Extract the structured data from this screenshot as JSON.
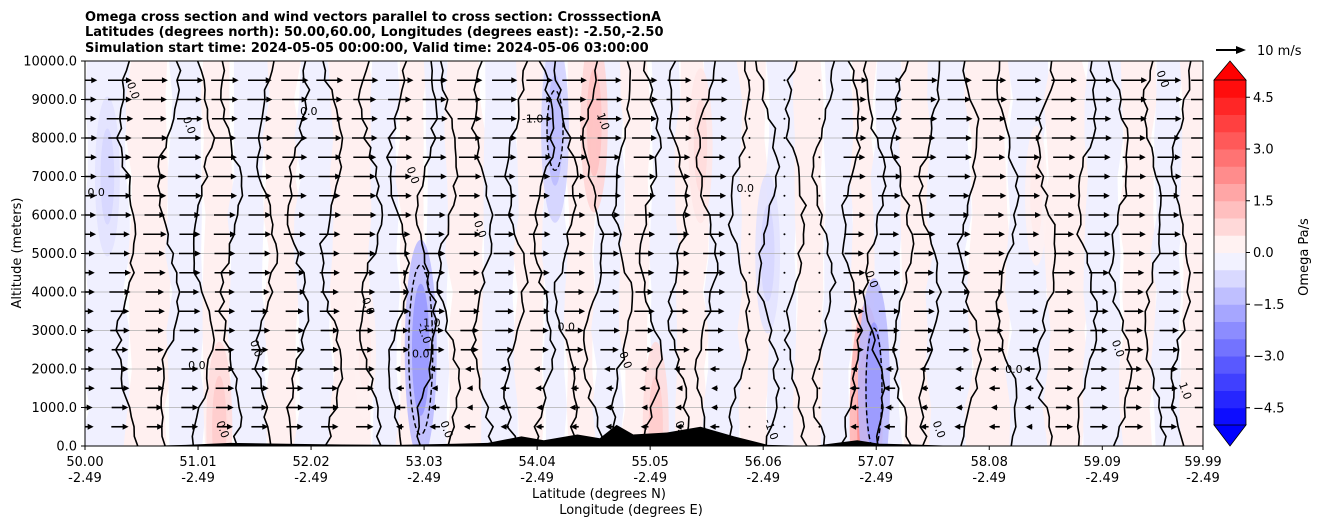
{
  "chart_data": {
    "type": "contour-section",
    "title": [
      "Omega cross section and wind vectors parallel to cross section: CrosssectionA",
      "Latitudes (degrees north): 50.00,60.00, Longitudes (degrees east): -2.50,-2.50",
      "Simulation start time: 2024-05-05 00:00:00, Valid time: 2024-05-06 03:00:00"
    ],
    "ylabel": "Altitude (meters)",
    "xlabel_lat": "Latitude (degrees N)",
    "xlabel_lon": "Longitude (degrees E)",
    "ylim": [
      0,
      10000
    ],
    "xlim": [
      50.0,
      59.99
    ],
    "y_ticks": [
      0,
      1000,
      2000,
      3000,
      4000,
      5000,
      6000,
      7000,
      8000,
      9000,
      10000
    ],
    "y_tick_labels": [
      "0.0",
      "1000.0",
      "2000.0",
      "3000.0",
      "4000.0",
      "5000.0",
      "6000.0",
      "7000.0",
      "8000.0",
      "9000.0",
      "10000.0"
    ],
    "x_ticks": [
      50.0,
      51.01,
      52.02,
      53.03,
      54.04,
      55.05,
      56.06,
      57.07,
      58.08,
      59.09,
      59.99
    ],
    "x_tick_lat_labels": [
      "50.00",
      "51.01",
      "52.02",
      "53.03",
      "54.04",
      "55.05",
      "56.06",
      "57.07",
      "58.08",
      "59.09",
      "59.99"
    ],
    "x_tick_lon_labels": [
      "-2.49",
      "-2.49",
      "-2.49",
      "-2.49",
      "-2.49",
      "-2.49",
      "-2.49",
      "-2.49",
      "-2.49",
      "-2.49",
      "-2.49"
    ],
    "grid": true,
    "colorbar": {
      "label": "Omega Pa/s",
      "range": [
        -5.0,
        5.0
      ],
      "levels": 20,
      "tick_values": [
        -4.5,
        -3.0,
        -1.5,
        0.0,
        1.5,
        3.0,
        4.5
      ],
      "tick_labels": [
        "−4.5",
        "−3.0",
        "−1.5",
        "0.0",
        "1.5",
        "3.0",
        "4.5"
      ],
      "extend": "both",
      "cmap": "bwr"
    },
    "quiver_key": {
      "label": "10 m/s",
      "speed": 10
    },
    "contour_levels": [
      -1.0,
      0.0,
      1.0
    ],
    "contour_labels": [
      {
        "text": "0.0",
        "lat": 50.1,
        "alt": 6500
      },
      {
        "text": "0.0",
        "lat": 50.4,
        "alt": 9200
      },
      {
        "text": "0.0",
        "lat": 50.9,
        "alt": 8300
      },
      {
        "text": "0.0",
        "lat": 51.0,
        "alt": 2000
      },
      {
        "text": "0.0",
        "lat": 51.2,
        "alt": 400
      },
      {
        "text": "0.0",
        "lat": 51.5,
        "alt": 2500
      },
      {
        "text": "0.0",
        "lat": 52.0,
        "alt": 8600
      },
      {
        "text": "0.0",
        "lat": 52.5,
        "alt": 3600
      },
      {
        "text": "0.0",
        "lat": 52.9,
        "alt": 7000
      },
      {
        "text": "0.0",
        "lat": 53.0,
        "alt": 2300
      },
      {
        "text": "0.0",
        "lat": 53.2,
        "alt": 400
      },
      {
        "text": "0.0",
        "lat": 53.5,
        "alt": 5600
      },
      {
        "text": "0.0",
        "lat": 54.3,
        "alt": 3000
      },
      {
        "text": "0.0",
        "lat": 54.8,
        "alt": 2200
      },
      {
        "text": "0.0",
        "lat": 55.3,
        "alt": 400
      },
      {
        "text": "0.0",
        "lat": 55.9,
        "alt": 6600
      },
      {
        "text": "0.0",
        "lat": 57.0,
        "alt": 4300
      },
      {
        "text": "0.0",
        "lat": 57.6,
        "alt": 400
      },
      {
        "text": "0.0",
        "lat": 58.3,
        "alt": 1900
      },
      {
        "text": "0.0",
        "lat": 59.2,
        "alt": 2500
      },
      {
        "text": "0.0",
        "lat": 59.6,
        "alt": 9500
      },
      {
        "text": "-1.0",
        "lat": 54.0,
        "alt": 8400
      },
      {
        "text": "1.0",
        "lat": 54.6,
        "alt": 8400
      },
      {
        "text": "-1.0",
        "lat": 53.0,
        "alt": 2900
      },
      {
        "text": "1.0",
        "lat": 53.1,
        "alt": 3100
      },
      {
        "text": "-1.0",
        "lat": 56.1,
        "alt": 400
      },
      {
        "text": "1.0",
        "lat": 59.8,
        "alt": 1400
      }
    ],
    "omega_features": [
      {
        "lat": 53.0,
        "alt": 2500,
        "omega": -2.0
      },
      {
        "lat": 54.55,
        "alt": 8400,
        "omega": 1.2
      },
      {
        "lat": 54.2,
        "alt": 8200,
        "omega": -1.3
      },
      {
        "lat": 56.98,
        "alt": 700,
        "omega": 2.2
      },
      {
        "lat": 57.05,
        "alt": 1500,
        "omega": -2.0
      },
      {
        "lat": 51.2,
        "alt": 500,
        "omega": 1.0
      },
      {
        "lat": 50.2,
        "alt": 7000,
        "omega": -0.8
      },
      {
        "lat": 56.1,
        "alt": 5000,
        "omega": -0.8
      },
      {
        "lat": 55.5,
        "alt": 7800,
        "omega": 0.7
      },
      {
        "lat": 58.5,
        "alt": 6500,
        "omega": 0.4
      },
      {
        "lat": 52.5,
        "alt": 2500,
        "omega": 0.4
      },
      {
        "lat": 55.1,
        "alt": 500,
        "omega": 1.0
      }
    ],
    "terrain": [
      {
        "lat": 50.0,
        "alt": 0
      },
      {
        "lat": 50.5,
        "alt": 0
      },
      {
        "lat": 50.9,
        "alt": 30
      },
      {
        "lat": 51.3,
        "alt": 80
      },
      {
        "lat": 51.8,
        "alt": 60
      },
      {
        "lat": 52.3,
        "alt": 40
      },
      {
        "lat": 52.8,
        "alt": 30
      },
      {
        "lat": 53.3,
        "alt": 60
      },
      {
        "lat": 53.6,
        "alt": 80
      },
      {
        "lat": 53.9,
        "alt": 250
      },
      {
        "lat": 54.1,
        "alt": 150
      },
      {
        "lat": 54.4,
        "alt": 300
      },
      {
        "lat": 54.6,
        "alt": 200
      },
      {
        "lat": 54.75,
        "alt": 550
      },
      {
        "lat": 54.9,
        "alt": 300
      },
      {
        "lat": 55.2,
        "alt": 350
      },
      {
        "lat": 55.5,
        "alt": 500
      },
      {
        "lat": 55.8,
        "alt": 250
      },
      {
        "lat": 56.1,
        "alt": 30
      },
      {
        "lat": 56.5,
        "alt": 0
      },
      {
        "lat": 56.9,
        "alt": 150
      },
      {
        "lat": 57.1,
        "alt": 60
      },
      {
        "lat": 57.4,
        "alt": 40
      },
      {
        "lat": 57.8,
        "alt": 0
      },
      {
        "lat": 59.99,
        "alt": 0
      }
    ]
  }
}
